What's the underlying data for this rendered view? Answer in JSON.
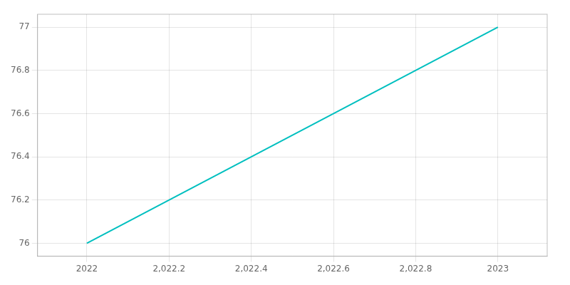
{
  "chart_data": {
    "type": "line",
    "x": [
      2022,
      2023
    ],
    "values": [
      76,
      77
    ],
    "color": "#00bfbf",
    "xlim": [
      2021.88,
      2023.12
    ],
    "ylim": [
      75.94,
      77.06
    ],
    "xticks": [
      2022,
      {
        "value": 2022.2,
        "label": "2,022.2"
      },
      {
        "value": 2022.4,
        "label": "2,022.4"
      },
      {
        "value": 2022.6,
        "label": "2,022.6"
      },
      {
        "value": 2022.8,
        "label": "2,022.8"
      },
      2023
    ],
    "yticks": [
      76,
      76.2,
      76.4,
      76.6,
      76.8,
      77
    ],
    "grid": true
  }
}
